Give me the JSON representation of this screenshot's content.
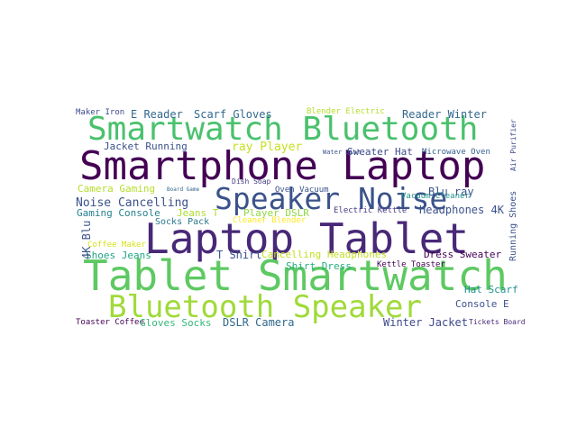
{
  "chart_data": {
    "type": "wordcloud",
    "words": [
      {
        "text": "Smartphone Laptop",
        "weight": 44,
        "color": "#440154"
      },
      {
        "text": "Laptop Tablet",
        "weight": 46,
        "color": "#482878"
      },
      {
        "text": "Tablet Smartwatch",
        "weight": 46,
        "color": "#5ec962"
      },
      {
        "text": "Smartwatch Bluetooth",
        "weight": 36,
        "color": "#4ac16d"
      },
      {
        "text": "Bluetooth Speaker",
        "weight": 34,
        "color": "#a0da39"
      },
      {
        "text": "Speaker Noise",
        "weight": 33,
        "color": "#3b528b"
      },
      {
        "text": "Maker Iron",
        "weight": 9,
        "color": "#3e4a89"
      },
      {
        "text": "E Reader",
        "weight": 12,
        "color": "#31688e"
      },
      {
        "text": "Scarf Gloves",
        "weight": 12,
        "color": "#31688e"
      },
      {
        "text": "Blender Electric",
        "weight": 9,
        "color": "#b5de2b"
      },
      {
        "text": "Reader Winter",
        "weight": 12,
        "color": "#31688e"
      },
      {
        "text": "Jacket Running",
        "weight": 11,
        "color": "#3b528b"
      },
      {
        "text": "ray Player",
        "weight": 13,
        "color": "#c8e020"
      },
      {
        "text": "Sweater Hat",
        "weight": 11,
        "color": "#3e4a89"
      },
      {
        "text": "Microwave Oven",
        "weight": 9,
        "color": "#355f8d"
      },
      {
        "text": "Camera Gaming",
        "weight": 11,
        "color": "#b5de2b"
      },
      {
        "text": "Noise Cancelling",
        "weight": 13,
        "color": "#3b528b"
      },
      {
        "text": "Gaming Console",
        "weight": 11,
        "color": "#26828e"
      },
      {
        "text": "Jeans T",
        "weight": 11,
        "color": "#addc30"
      },
      {
        "text": "Socks Pack",
        "weight": 10,
        "color": "#2a788e"
      },
      {
        "text": "Player DSLR",
        "weight": 11,
        "color": "#90d743"
      },
      {
        "text": "Oven Vacuum",
        "weight": 9,
        "color": "#3b528b"
      },
      {
        "text": "Blu ray",
        "weight": 12,
        "color": "#3b528b"
      },
      {
        "text": "Vacuum Cleaner",
        "weight": 9,
        "color": "#21918c"
      },
      {
        "text": "Electric Kettle",
        "weight": 9,
        "color": "#443983"
      },
      {
        "text": "Headphones 4K",
        "weight": 12,
        "color": "#3b528b"
      },
      {
        "text": "Cancelling Headphones",
        "weight": 11,
        "color": "#c2df23"
      },
      {
        "text": "Dress Sweater",
        "weight": 11,
        "color": "#440154"
      },
      {
        "text": "Shoes Jeans",
        "weight": 11,
        "color": "#21a585"
      },
      {
        "text": "T Shirt",
        "weight": 12,
        "color": "#3b528b"
      },
      {
        "text": "Shirt Dress",
        "weight": 11,
        "color": "#27ad81"
      },
      {
        "text": "Kettle Toaster",
        "weight": 9,
        "color": "#440154"
      },
      {
        "text": "Hat Scarf",
        "weight": 11,
        "color": "#21918c"
      },
      {
        "text": "Console E",
        "weight": 11,
        "color": "#3b528b"
      },
      {
        "text": "Toaster Coffee",
        "weight": 9,
        "color": "#440154"
      },
      {
        "text": "Gloves Socks",
        "weight": 11,
        "color": "#35b779"
      },
      {
        "text": "DSLR Camera",
        "weight": 12,
        "color": "#31688e"
      },
      {
        "text": "Winter Jacket",
        "weight": 12,
        "color": "#3e4a89"
      },
      {
        "text": "Tickets Board",
        "weight": 8,
        "color": "#482878"
      },
      {
        "text": "Coffee Maker",
        "weight": 9,
        "color": "#d8e219"
      },
      {
        "text": "Dish Soap",
        "weight": 8,
        "color": "#433e85"
      },
      {
        "text": "Cleaner Blender",
        "weight": 9,
        "color": "#fde725"
      },
      {
        "text": "Board Game",
        "weight": 6,
        "color": "#31688e"
      },
      {
        "text": "Water Dish",
        "weight": 7,
        "color": "#3b528b"
      },
      {
        "text": "4K Blu",
        "weight": 12,
        "color": "#3b528b"
      },
      {
        "text": "Running Shoes",
        "weight": 10,
        "color": "#3b528b"
      },
      {
        "text": "Air Purifier",
        "weight": 8,
        "color": "#3e4a89"
      }
    ]
  }
}
